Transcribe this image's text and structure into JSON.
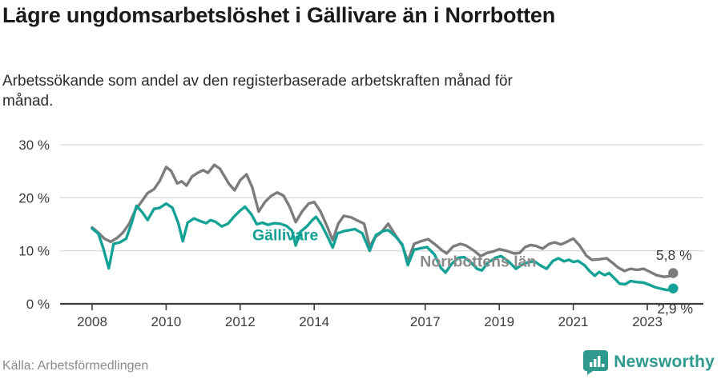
{
  "header": {
    "title": "Lägre ungdomsarbetslöshet i Gällivare än i Norrbotten",
    "subtitle": "Arbetssökande som andel av den registerbaserade arbetskraften månad för månad."
  },
  "footer": {
    "source": "Källa: Arbetsförmedlingen",
    "brand": "Newsworthy"
  },
  "colors": {
    "gallivare_line": "#15a296",
    "norrbotten_line": "#7c7c7c",
    "grid": "#dcdcdc",
    "axis": "#3c3c3c",
    "brand_teal": "#2e9a8e",
    "title_text": "#1a1a1a",
    "source_text": "#8a8a8a"
  },
  "chart_data": {
    "type": "line",
    "title": "Lägre ungdomsarbetslöshet i Gällivare än i Norrbotten",
    "subtitle": "Arbetssökande som andel av den registerbaserade arbetskraften månad för månad.",
    "unit": "%",
    "ylim": [
      0,
      30
    ],
    "xlim": [
      2008,
      2023.9
    ],
    "grid": true,
    "legend_position": "inline-labels",
    "y_gridlines": [
      {
        "label": "30 %",
        "value": 30
      },
      {
        "label": "20 %",
        "value": 20
      },
      {
        "label": "10 %",
        "value": 10
      },
      {
        "label": "0 %",
        "value": 0
      }
    ],
    "x_ticks": [
      "2008",
      "2010",
      "2012",
      "2014",
      "2017",
      "2019",
      "2021",
      "2023"
    ],
    "x_tick_values": [
      2008,
      2010,
      2012,
      2014,
      2017,
      2019,
      2021,
      2023
    ],
    "series": [
      {
        "id": "norrbotten",
        "name": "Norrbottens län",
        "color": "#7c7c7c",
        "end_value_label": "5,8 %",
        "last_value": 5.8,
        "points": [
          [
            2008.0,
            14.4
          ],
          [
            2008.17,
            13.4
          ],
          [
            2008.33,
            12.3
          ],
          [
            2008.5,
            11.7
          ],
          [
            2008.67,
            12.4
          ],
          [
            2008.83,
            13.4
          ],
          [
            2009.0,
            15.1
          ],
          [
            2009.17,
            17.7
          ],
          [
            2009.33,
            19.2
          ],
          [
            2009.5,
            20.9
          ],
          [
            2009.67,
            21.6
          ],
          [
            2009.83,
            23.2
          ],
          [
            2010.0,
            25.8
          ],
          [
            2010.13,
            25.1
          ],
          [
            2010.3,
            22.7
          ],
          [
            2010.42,
            23.1
          ],
          [
            2010.55,
            22.3
          ],
          [
            2010.7,
            24.0
          ],
          [
            2010.85,
            24.7
          ],
          [
            2011.0,
            25.2
          ],
          [
            2011.13,
            24.7
          ],
          [
            2011.3,
            26.2
          ],
          [
            2011.45,
            25.5
          ],
          [
            2011.58,
            24.0
          ],
          [
            2011.7,
            22.6
          ],
          [
            2011.85,
            21.4
          ],
          [
            2012.0,
            23.3
          ],
          [
            2012.17,
            24.4
          ],
          [
            2012.33,
            21.9
          ],
          [
            2012.5,
            17.4
          ],
          [
            2012.67,
            19.2
          ],
          [
            2012.83,
            20.3
          ],
          [
            2013.0,
            21.0
          ],
          [
            2013.17,
            20.4
          ],
          [
            2013.33,
            18.4
          ],
          [
            2013.5,
            15.4
          ],
          [
            2013.67,
            17.4
          ],
          [
            2013.85,
            18.9
          ],
          [
            2014.0,
            19.2
          ],
          [
            2014.17,
            17.4
          ],
          [
            2014.35,
            14.6
          ],
          [
            2014.5,
            12.0
          ],
          [
            2014.65,
            15.1
          ],
          [
            2014.8,
            16.6
          ],
          [
            2015.0,
            16.3
          ],
          [
            2015.2,
            15.6
          ],
          [
            2015.35,
            15.1
          ],
          [
            2015.5,
            10.8
          ],
          [
            2015.65,
            12.6
          ],
          [
            2015.8,
            13.4
          ],
          [
            2016.0,
            15.1
          ],
          [
            2016.2,
            12.9
          ],
          [
            2016.38,
            11.0
          ],
          [
            2016.53,
            8.0
          ],
          [
            2016.7,
            11.3
          ],
          [
            2016.88,
            11.8
          ],
          [
            2017.08,
            12.2
          ],
          [
            2017.3,
            11.0
          ],
          [
            2017.45,
            10.1
          ],
          [
            2017.58,
            9.5
          ],
          [
            2017.75,
            10.8
          ],
          [
            2017.95,
            11.3
          ],
          [
            2018.1,
            11.0
          ],
          [
            2018.3,
            10.1
          ],
          [
            2018.5,
            9.0
          ],
          [
            2018.67,
            9.6
          ],
          [
            2018.85,
            9.9
          ],
          [
            2019.0,
            10.3
          ],
          [
            2019.2,
            10.0
          ],
          [
            2019.4,
            9.5
          ],
          [
            2019.55,
            9.6
          ],
          [
            2019.7,
            10.7
          ],
          [
            2019.85,
            11.1
          ],
          [
            2020.0,
            10.9
          ],
          [
            2020.17,
            10.4
          ],
          [
            2020.35,
            11.3
          ],
          [
            2020.5,
            11.6
          ],
          [
            2020.67,
            11.2
          ],
          [
            2020.83,
            11.7
          ],
          [
            2021.0,
            12.3
          ],
          [
            2021.17,
            11.0
          ],
          [
            2021.35,
            9.1
          ],
          [
            2021.5,
            8.3
          ],
          [
            2021.7,
            8.4
          ],
          [
            2021.9,
            8.6
          ],
          [
            2022.05,
            7.8
          ],
          [
            2022.22,
            6.8
          ],
          [
            2022.38,
            6.2
          ],
          [
            2022.55,
            6.6
          ],
          [
            2022.72,
            6.4
          ],
          [
            2022.9,
            6.6
          ],
          [
            2023.05,
            6.1
          ],
          [
            2023.25,
            5.4
          ],
          [
            2023.45,
            5.1
          ],
          [
            2023.6,
            5.2
          ],
          [
            2023.7,
            5.8
          ]
        ]
      },
      {
        "id": "gallivare",
        "name": "Gällivare",
        "color": "#15a296",
        "end_value_label": "2,9 %",
        "last_value": 2.9,
        "points": [
          [
            2008.0,
            14.2
          ],
          [
            2008.17,
            13.2
          ],
          [
            2008.3,
            10.5
          ],
          [
            2008.45,
            6.7
          ],
          [
            2008.58,
            11.3
          ],
          [
            2008.75,
            11.6
          ],
          [
            2008.92,
            12.3
          ],
          [
            2009.08,
            15.5
          ],
          [
            2009.2,
            18.5
          ],
          [
            2009.35,
            17.3
          ],
          [
            2009.5,
            15.8
          ],
          [
            2009.67,
            17.9
          ],
          [
            2009.83,
            18.1
          ],
          [
            2010.0,
            18.9
          ],
          [
            2010.17,
            18.1
          ],
          [
            2010.33,
            15.2
          ],
          [
            2010.45,
            11.8
          ],
          [
            2010.58,
            15.3
          ],
          [
            2010.75,
            16.1
          ],
          [
            2010.92,
            15.6
          ],
          [
            2011.08,
            15.2
          ],
          [
            2011.2,
            15.8
          ],
          [
            2011.33,
            15.5
          ],
          [
            2011.5,
            14.6
          ],
          [
            2011.67,
            15.1
          ],
          [
            2011.83,
            16.4
          ],
          [
            2012.0,
            17.6
          ],
          [
            2012.13,
            18.3
          ],
          [
            2012.3,
            16.9
          ],
          [
            2012.45,
            15.0
          ],
          [
            2012.6,
            15.3
          ],
          [
            2012.75,
            14.9
          ],
          [
            2012.92,
            15.2
          ],
          [
            2013.08,
            15.1
          ],
          [
            2013.25,
            14.7
          ],
          [
            2013.4,
            13.8
          ],
          [
            2013.5,
            11.0
          ],
          [
            2013.63,
            13.6
          ],
          [
            2013.8,
            14.6
          ],
          [
            2013.95,
            15.8
          ],
          [
            2014.05,
            16.4
          ],
          [
            2014.2,
            14.9
          ],
          [
            2014.38,
            12.4
          ],
          [
            2014.5,
            10.6
          ],
          [
            2014.63,
            13.3
          ],
          [
            2014.8,
            13.7
          ],
          [
            2014.95,
            13.9
          ],
          [
            2015.1,
            14.1
          ],
          [
            2015.3,
            13.3
          ],
          [
            2015.5,
            10.0
          ],
          [
            2015.67,
            13.0
          ],
          [
            2015.85,
            13.7
          ],
          [
            2016.0,
            13.9
          ],
          [
            2016.2,
            12.7
          ],
          [
            2016.38,
            11.2
          ],
          [
            2016.53,
            7.3
          ],
          [
            2016.7,
            10.2
          ],
          [
            2016.88,
            10.5
          ],
          [
            2017.05,
            10.7
          ],
          [
            2017.25,
            9.3
          ],
          [
            2017.42,
            6.8
          ],
          [
            2017.55,
            5.9
          ],
          [
            2017.72,
            7.6
          ],
          [
            2017.9,
            8.7
          ],
          [
            2018.05,
            8.8
          ],
          [
            2018.22,
            7.9
          ],
          [
            2018.4,
            6.6
          ],
          [
            2018.53,
            6.3
          ],
          [
            2018.7,
            7.8
          ],
          [
            2018.9,
            8.7
          ],
          [
            2019.05,
            9.0
          ],
          [
            2019.25,
            8.0
          ],
          [
            2019.45,
            6.6
          ],
          [
            2019.6,
            7.3
          ],
          [
            2019.8,
            7.9
          ],
          [
            2019.95,
            8.0
          ],
          [
            2020.1,
            7.3
          ],
          [
            2020.28,
            6.6
          ],
          [
            2020.45,
            8.1
          ],
          [
            2020.6,
            8.6
          ],
          [
            2020.75,
            8.0
          ],
          [
            2020.88,
            8.3
          ],
          [
            2021.0,
            7.9
          ],
          [
            2021.13,
            8.1
          ],
          [
            2021.3,
            7.3
          ],
          [
            2021.45,
            6.1
          ],
          [
            2021.58,
            5.3
          ],
          [
            2021.7,
            6.0
          ],
          [
            2021.85,
            5.4
          ],
          [
            2021.97,
            5.8
          ],
          [
            2022.1,
            4.9
          ],
          [
            2022.25,
            3.8
          ],
          [
            2022.4,
            3.7
          ],
          [
            2022.55,
            4.3
          ],
          [
            2022.72,
            4.1
          ],
          [
            2022.9,
            4.0
          ],
          [
            2023.05,
            3.6
          ],
          [
            2023.22,
            3.1
          ],
          [
            2023.4,
            2.8
          ],
          [
            2023.55,
            2.6
          ],
          [
            2023.7,
            2.9
          ]
        ]
      }
    ],
    "annotations": [
      {
        "name": "series-label-gallivare",
        "text": "Gällivare",
        "x": 2013.22,
        "y": 13.0,
        "color": "#12a094",
        "size": 19.5,
        "bold": true,
        "anchor": "middle"
      },
      {
        "name": "series-label-norrbotten",
        "text": "Norrbottens län",
        "x": 2018.43,
        "y": 8.0,
        "color": "#8b8b8b",
        "size": 19.5,
        "bold": true,
        "anchor": "middle"
      },
      {
        "name": "end-value-label-norrbotten",
        "text": "5,8 %",
        "x": 2023.72,
        "y": 9.3,
        "color": "#3c3c3c",
        "size": 17.5,
        "bold": false,
        "anchor": "middle"
      },
      {
        "name": "end-value-label-gallivare",
        "text": "2,9 %",
        "x": 2023.75,
        "y": -0.8,
        "color": "#3c3c3c",
        "size": 17.5,
        "bold": false,
        "anchor": "middle"
      }
    ]
  }
}
